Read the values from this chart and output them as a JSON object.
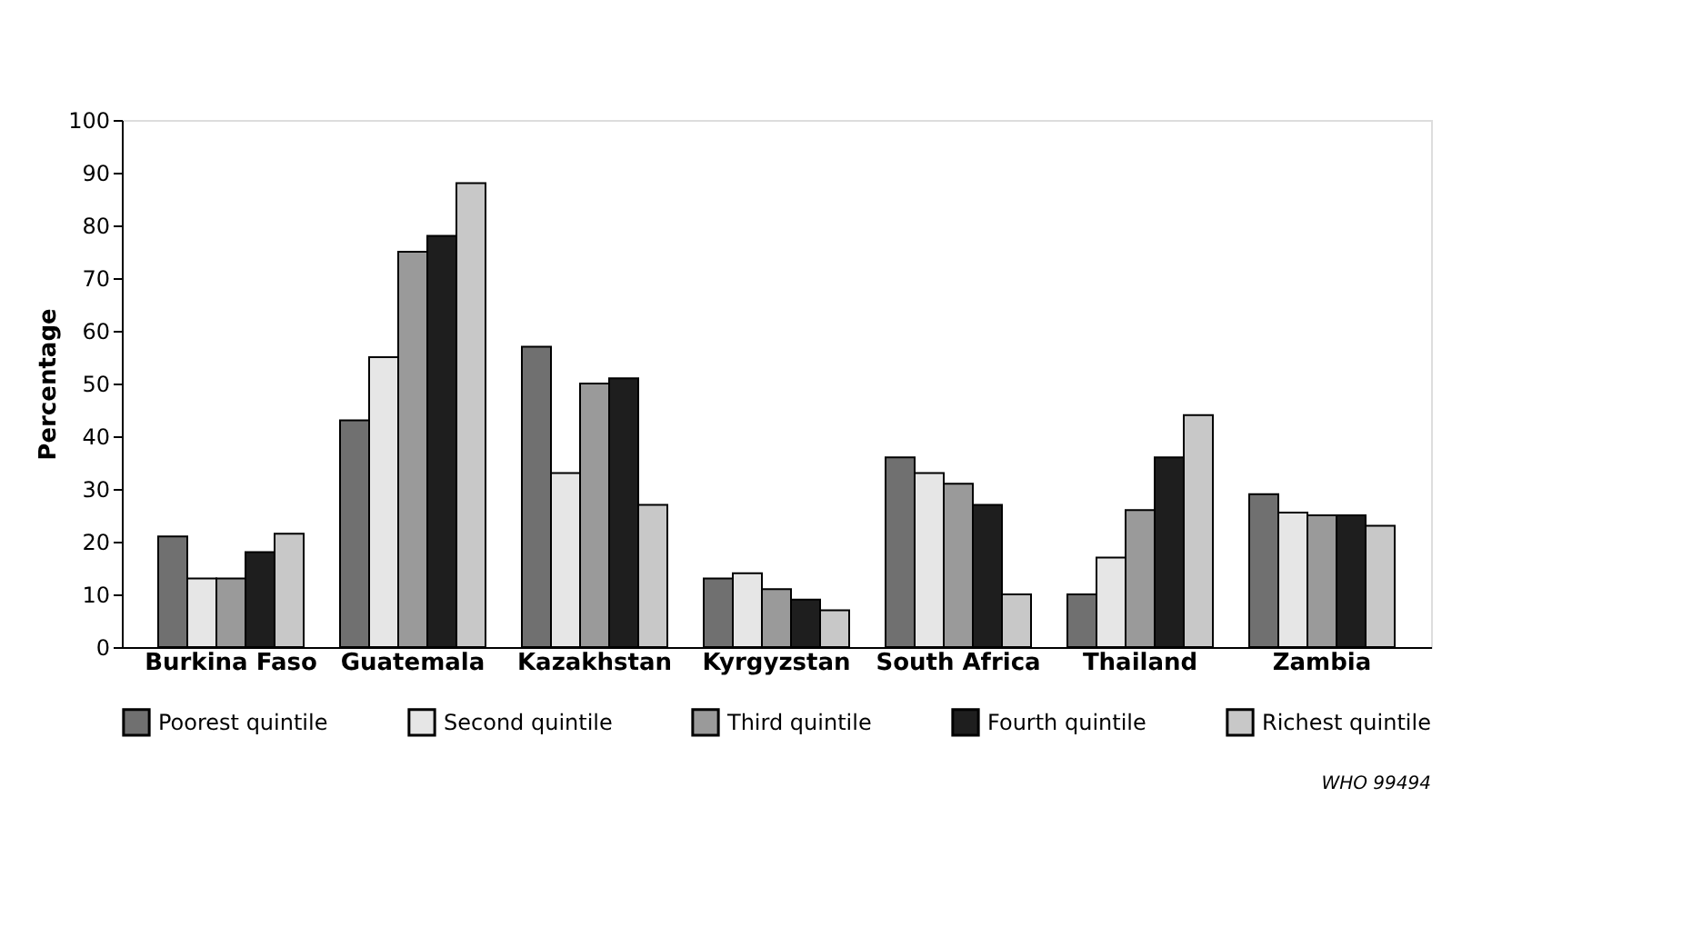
{
  "chart_data": {
    "type": "bar",
    "ylabel": "Percentage",
    "categories": [
      "Burkina Faso",
      "Guatemala",
      "Kazakhstan",
      "Kyrgyzstan",
      "South Africa",
      "Thailand",
      "Zambia"
    ],
    "series": [
      {
        "name": "Poorest quintile",
        "color": "#707070",
        "values": [
          21,
          43,
          57,
          13,
          36,
          10,
          29
        ]
      },
      {
        "name": "Second quintile",
        "color": "#e6e6e6",
        "values": [
          13,
          55,
          33,
          14,
          33,
          17,
          25.5
        ]
      },
      {
        "name": "Third quintile",
        "color": "#9a9a9a",
        "values": [
          13,
          75,
          50,
          11,
          31,
          26,
          25
        ]
      },
      {
        "name": "Fourth quintile",
        "color": "#1e1e1e",
        "values": [
          18,
          78,
          51,
          9,
          27,
          36,
          25
        ]
      },
      {
        "name": "Richest quintile",
        "color": "#c8c8c8",
        "values": [
          21.5,
          88,
          27,
          7,
          10,
          44,
          23
        ]
      }
    ],
    "ylim": [
      0,
      100
    ],
    "yticks": [
      0,
      10,
      20,
      30,
      40,
      50,
      60,
      70,
      80,
      90,
      100
    ],
    "grid": false,
    "legend": "bottom",
    "annotations": [
      "WHO 99494"
    ]
  }
}
